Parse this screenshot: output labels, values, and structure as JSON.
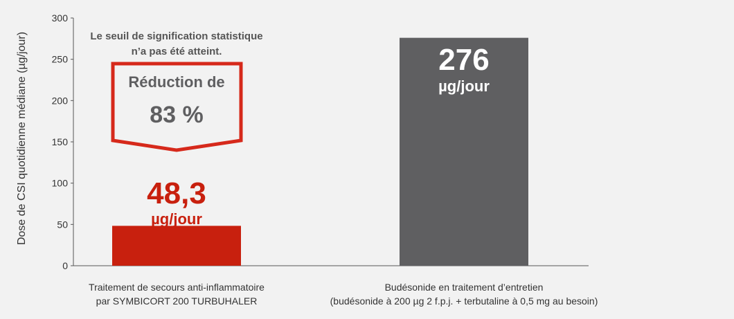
{
  "chart_data": {
    "type": "bar",
    "categories": [
      [
        "Traitement de secours anti-inflammatoire",
        "par SYMBICORT 200 TURBUHALER"
      ],
      [
        "Budésonide en traitement d’entretien",
        "(budésonide à 200 µg 2 f.p.j. + terbutaline à 0,5 mg au besoin)"
      ]
    ],
    "values": [
      48.3,
      276
    ],
    "value_labels": [
      "48,3",
      "276"
    ],
    "value_units": [
      "µg/jour",
      "µg/jour"
    ],
    "bar_colors": [
      "#c8200e",
      "#5f5f61"
    ],
    "ylabel": "Dose de CSI quotidienne médiane (µg/jour)",
    "ylim": [
      0,
      300
    ],
    "yticks": [
      0,
      50,
      100,
      150,
      200,
      250,
      300
    ],
    "annotations": {
      "note_line1": "Le seuil de signification statistique",
      "note_line2": "n’a pas été atteint.",
      "callout_line1": "Réduction de",
      "callout_line2": "83 %",
      "callout_color": "#d6291b"
    },
    "grid": false,
    "legend": "none"
  }
}
